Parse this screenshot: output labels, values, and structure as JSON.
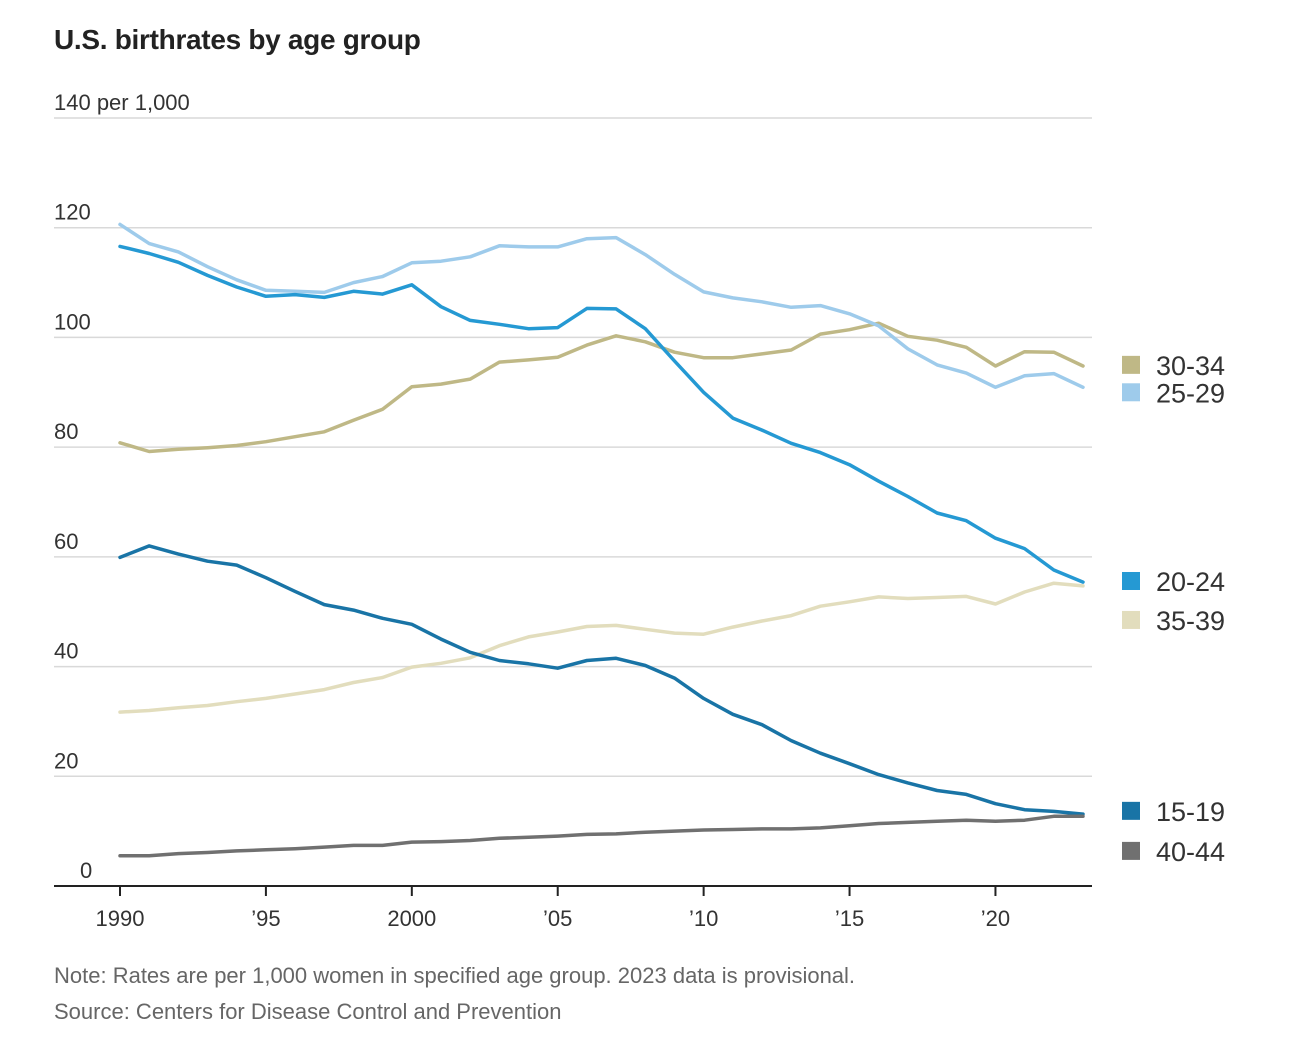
{
  "title": "U.S. birthrates by age group",
  "note": "Note: Rates are per 1,000 women in specified age group. 2023 data is provisional.",
  "source": "Source: Centers for Disease Control and Prevention",
  "chart_data": {
    "type": "line",
    "title": "U.S. birthrates by age group",
    "ylim": [
      0,
      140
    ],
    "xlim": [
      1990,
      2023
    ],
    "grid": true,
    "y_ticks": [
      {
        "value": 0,
        "label": "0"
      },
      {
        "value": 20,
        "label": "20"
      },
      {
        "value": 40,
        "label": "40"
      },
      {
        "value": 60,
        "label": "60"
      },
      {
        "value": 80,
        "label": "80"
      },
      {
        "value": 100,
        "label": "100"
      },
      {
        "value": 120,
        "label": "120"
      },
      {
        "value": 140,
        "label": "140 per 1,000"
      }
    ],
    "x_ticks": [
      {
        "value": 1990,
        "label": "1990"
      },
      {
        "value": 1995,
        "label": "’95"
      },
      {
        "value": 2000,
        "label": "2000"
      },
      {
        "value": 2005,
        "label": "’05"
      },
      {
        "value": 2010,
        "label": "’10"
      },
      {
        "value": 2015,
        "label": "’15"
      },
      {
        "value": 2020,
        "label": "’20"
      }
    ],
    "x": [
      1990,
      1991,
      1992,
      1993,
      1994,
      1995,
      1996,
      1997,
      1998,
      1999,
      2000,
      2001,
      2002,
      2003,
      2004,
      2005,
      2006,
      2007,
      2008,
      2009,
      2010,
      2011,
      2012,
      2013,
      2014,
      2015,
      2016,
      2017,
      2018,
      2019,
      2020,
      2021,
      2022,
      2023
    ],
    "legend": "right",
    "series": [
      {
        "name": "30-34",
        "color": "#bfb886",
        "legend_y": 95,
        "values": [
          80.8,
          79.2,
          79.6,
          79.9,
          80.3,
          81.0,
          81.9,
          82.8,
          84.9,
          86.9,
          91.0,
          91.5,
          92.4,
          95.5,
          95.9,
          96.4,
          98.6,
          100.3,
          99.2,
          97.3,
          96.3,
          96.3,
          97.0,
          97.7,
          100.6,
          101.4,
          102.6,
          100.2,
          99.5,
          98.2,
          94.8,
          97.4,
          97.3,
          94.8
        ]
      },
      {
        "name": "25-29",
        "color": "#9ecbeb",
        "legend_y": 90,
        "values": [
          120.6,
          117.1,
          115.6,
          112.9,
          110.5,
          108.6,
          108.4,
          108.2,
          110.0,
          111.1,
          113.6,
          113.9,
          114.7,
          116.7,
          116.5,
          116.5,
          118.0,
          118.2,
          115.1,
          111.5,
          108.3,
          107.2,
          106.5,
          105.5,
          105.8,
          104.3,
          102.1,
          97.9,
          95.0,
          93.5,
          90.9,
          93.0,
          93.4,
          90.9
        ]
      },
      {
        "name": "20-24",
        "color": "#2599d3",
        "legend_y": 55.6,
        "values": [
          116.6,
          115.3,
          113.7,
          111.3,
          109.2,
          107.5,
          107.8,
          107.3,
          108.4,
          107.9,
          109.6,
          105.6,
          103.1,
          102.4,
          101.6,
          101.8,
          105.3,
          105.2,
          101.6,
          95.7,
          90.0,
          85.3,
          83.1,
          80.7,
          79.0,
          76.8,
          73.8,
          71.0,
          68.0,
          66.6,
          63.4,
          61.5,
          57.6,
          55.4
        ]
      },
      {
        "name": "35-39",
        "color": "#e2ddbd",
        "legend_y": 48.5,
        "values": [
          31.7,
          32.0,
          32.5,
          32.9,
          33.6,
          34.2,
          35.0,
          35.8,
          37.1,
          38.0,
          39.9,
          40.6,
          41.6,
          43.8,
          45.4,
          46.3,
          47.3,
          47.5,
          46.8,
          46.1,
          45.9,
          47.2,
          48.3,
          49.3,
          51.0,
          51.8,
          52.7,
          52.4,
          52.6,
          52.8,
          51.4,
          53.6,
          55.2,
          54.7
        ]
      },
      {
        "name": "15-19",
        "color": "#1974a6",
        "legend_y": 13.7,
        "values": [
          59.9,
          62.0,
          60.5,
          59.2,
          58.5,
          56.2,
          53.7,
          51.3,
          50.3,
          48.8,
          47.7,
          45.0,
          42.6,
          41.1,
          40.5,
          39.7,
          41.1,
          41.5,
          40.2,
          37.9,
          34.2,
          31.3,
          29.4,
          26.5,
          24.2,
          22.3,
          20.3,
          18.8,
          17.4,
          16.7,
          15.0,
          13.9,
          13.6,
          13.1
        ]
      },
      {
        "name": "40-44",
        "color": "#707070",
        "legend_y": 6.4,
        "values": [
          5.5,
          5.5,
          5.9,
          6.1,
          6.4,
          6.6,
          6.8,
          7.1,
          7.4,
          7.4,
          8.0,
          8.1,
          8.3,
          8.7,
          8.9,
          9.1,
          9.4,
          9.5,
          9.8,
          10.0,
          10.2,
          10.3,
          10.4,
          10.4,
          10.6,
          11.0,
          11.4,
          11.6,
          11.8,
          12.0,
          11.8,
          12.0,
          12.7,
          12.7
        ]
      }
    ]
  }
}
